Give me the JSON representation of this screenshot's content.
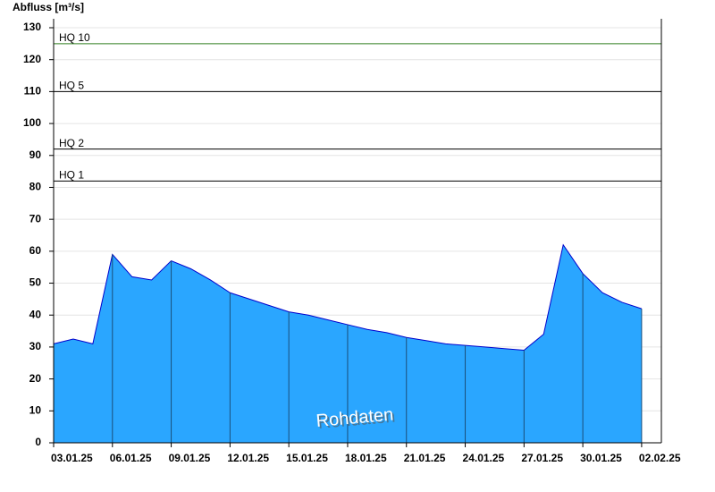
{
  "chart_data": {
    "type": "area",
    "ylabel": "Abfluss [m³/s]",
    "annotation": "Rohdaten",
    "x": [
      "03.01.25",
      "04.01.25",
      "05.01.25",
      "06.01.25",
      "07.01.25",
      "08.01.25",
      "09.01.25",
      "10.01.25",
      "11.01.25",
      "12.01.25",
      "13.01.25",
      "14.01.25",
      "15.01.25",
      "16.01.25",
      "17.01.25",
      "18.01.25",
      "19.01.25",
      "20.01.25",
      "21.01.25",
      "22.01.25",
      "23.01.25",
      "24.01.25",
      "25.01.25",
      "26.01.25",
      "27.01.25",
      "28.01.25",
      "29.01.25",
      "30.01.25",
      "31.01.25",
      "01.02.25",
      "02.02.25"
    ],
    "series": [
      {
        "color": "#2aa6ff",
        "values": [
          31,
          32.5,
          31,
          59,
          52,
          51,
          57,
          54.5,
          51,
          47,
          45,
          43,
          41,
          40,
          38.5,
          37,
          35.5,
          34.5,
          33,
          32,
          31,
          30.5,
          30,
          29.5,
          29,
          34,
          62,
          53,
          47,
          44,
          42
        ]
      }
    ],
    "xticks": [
      "03.01.25",
      "06.01.25",
      "09.01.25",
      "12.01.25",
      "15.01.25",
      "18.01.25",
      "21.01.25",
      "24.01.25",
      "27.01.25",
      "30.01.25",
      "02.02.25"
    ],
    "ylim": [
      0,
      130
    ],
    "yticks": [
      0,
      10,
      20,
      30,
      40,
      50,
      60,
      70,
      80,
      90,
      100,
      110,
      120,
      130
    ],
    "grid": true,
    "thresholds": [
      {
        "label": "HQ 10",
        "value": 125,
        "color": "#2e7d1e"
      },
      {
        "label": "HQ 5",
        "value": 110,
        "color": "#000000"
      },
      {
        "label": "HQ 2",
        "value": 92,
        "color": "#000000"
      },
      {
        "label": "HQ 1",
        "value": 82,
        "color": "#000000"
      }
    ]
  }
}
